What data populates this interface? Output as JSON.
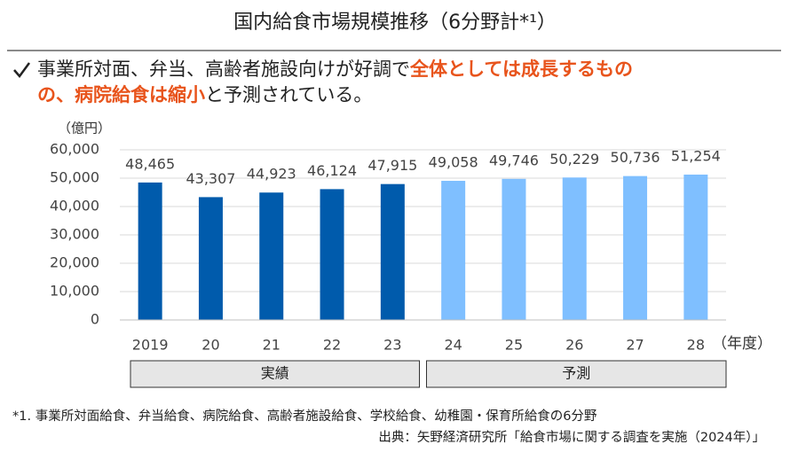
{
  "headline": [
    [
      {
        "text": "事業所対面、弁当、高齢者施設向けが好調で",
        "color": "#222222"
      },
      {
        "text": "全体としては成長するもの",
        "color": "#e8541c"
      }
    ],
    [
      {
        "text": "の、病院給食は縮小",
        "color": "#e8541c"
      },
      {
        "text": "と予測されている。",
        "color": "#222222"
      }
    ]
  ],
  "notes": [
    "*1. 事業所対面給食、弁当給食、病院給食、高齢者施設給食、学校給食、幼稚園・保育所給食の6分野",
    "出典：矢野経済研究所「給食市場に関する調査を実施（2024年）」"
  ],
  "chart_data": {
    "type": "bar",
    "title": "国内給食市場規模推移（6分野計*¹）",
    "y_label": "（億円）",
    "x_label": "（年度）",
    "categories": [
      "2019",
      "20",
      "21",
      "22",
      "23",
      "24",
      "25",
      "26",
      "27",
      "28"
    ],
    "series": [
      {
        "name": "実績",
        "color": "#005bac",
        "values": [
          48465,
          43307,
          44923,
          46124,
          47915,
          null,
          null,
          null,
          null,
          null
        ],
        "value_labels": [
          "48,465",
          "43,307",
          "44,923",
          "46,124",
          "47,915",
          null,
          null,
          null,
          null,
          null
        ]
      },
      {
        "name": "予測",
        "color": "#7fbfff",
        "values": [
          null,
          null,
          null,
          null,
          null,
          49058,
          49746,
          50229,
          50736,
          51254
        ],
        "value_labels": [
          null,
          null,
          null,
          null,
          null,
          "49,058",
          "49,746",
          "50,229",
          "50,736",
          "51,254"
        ]
      }
    ],
    "ylim": [
      0,
      60000
    ],
    "yticks": [
      0,
      {
        "value": 10000,
        "label": "10,000"
      },
      {
        "value": 20000,
        "label": "20,000"
      },
      {
        "value": 30000,
        "label": "30,000"
      },
      {
        "value": 40000,
        "label": "40,000"
      },
      {
        "value": 50000,
        "label": "50,000"
      },
      {
        "value": 60000,
        "label": "60,000"
      }
    ],
    "grid": true
  }
}
